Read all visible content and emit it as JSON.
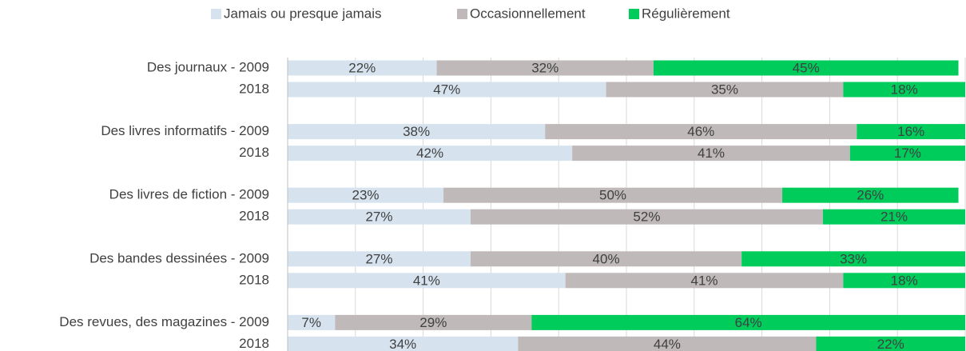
{
  "chart_data": {
    "type": "stacked-bar-horizontal",
    "categories": [
      "Des journaux - 2009",
      "2018",
      "Des livres informatifs - 2009",
      "2018",
      "Des livres de fiction - 2009",
      "2018",
      "Des bandes dessinées - 2009",
      "2018",
      "Des revues, des magazines - 2009",
      "2018"
    ],
    "series": [
      {
        "name": "Jamais ou presque jamais",
        "color": "#d6e3ef",
        "values": [
          22,
          47,
          38,
          42,
          23,
          27,
          27,
          41,
          7,
          34
        ],
        "value_labels": [
          "22%",
          "47%",
          "38%",
          "42%",
          "23%",
          "27%",
          "27%",
          "41%",
          "7%",
          "34%"
        ]
      },
      {
        "name": "Occasionnellement",
        "color": "#bfb9b9",
        "values": [
          32,
          35,
          46,
          41,
          50,
          52,
          40,
          41,
          29,
          44
        ],
        "value_labels": [
          "32%",
          "35%",
          "46%",
          "41%",
          "50%",
          "52%",
          "40%",
          "41%",
          "29%",
          "44%"
        ]
      },
      {
        "name": "Régulièrement",
        "color": "#00cc5c",
        "values": [
          45,
          18,
          16,
          17,
          26,
          21,
          33,
          18,
          64,
          22
        ],
        "value_labels": [
          "45%",
          "18%",
          "16%",
          "17%",
          "26%",
          "21%",
          "33%",
          "18%",
          "64%",
          "22%"
        ]
      }
    ],
    "xlim": [
      0,
      100
    ],
    "xticks": [
      0,
      10,
      20,
      30,
      40,
      50,
      60,
      70,
      80,
      90,
      100
    ],
    "grid": true,
    "legend": "top"
  }
}
